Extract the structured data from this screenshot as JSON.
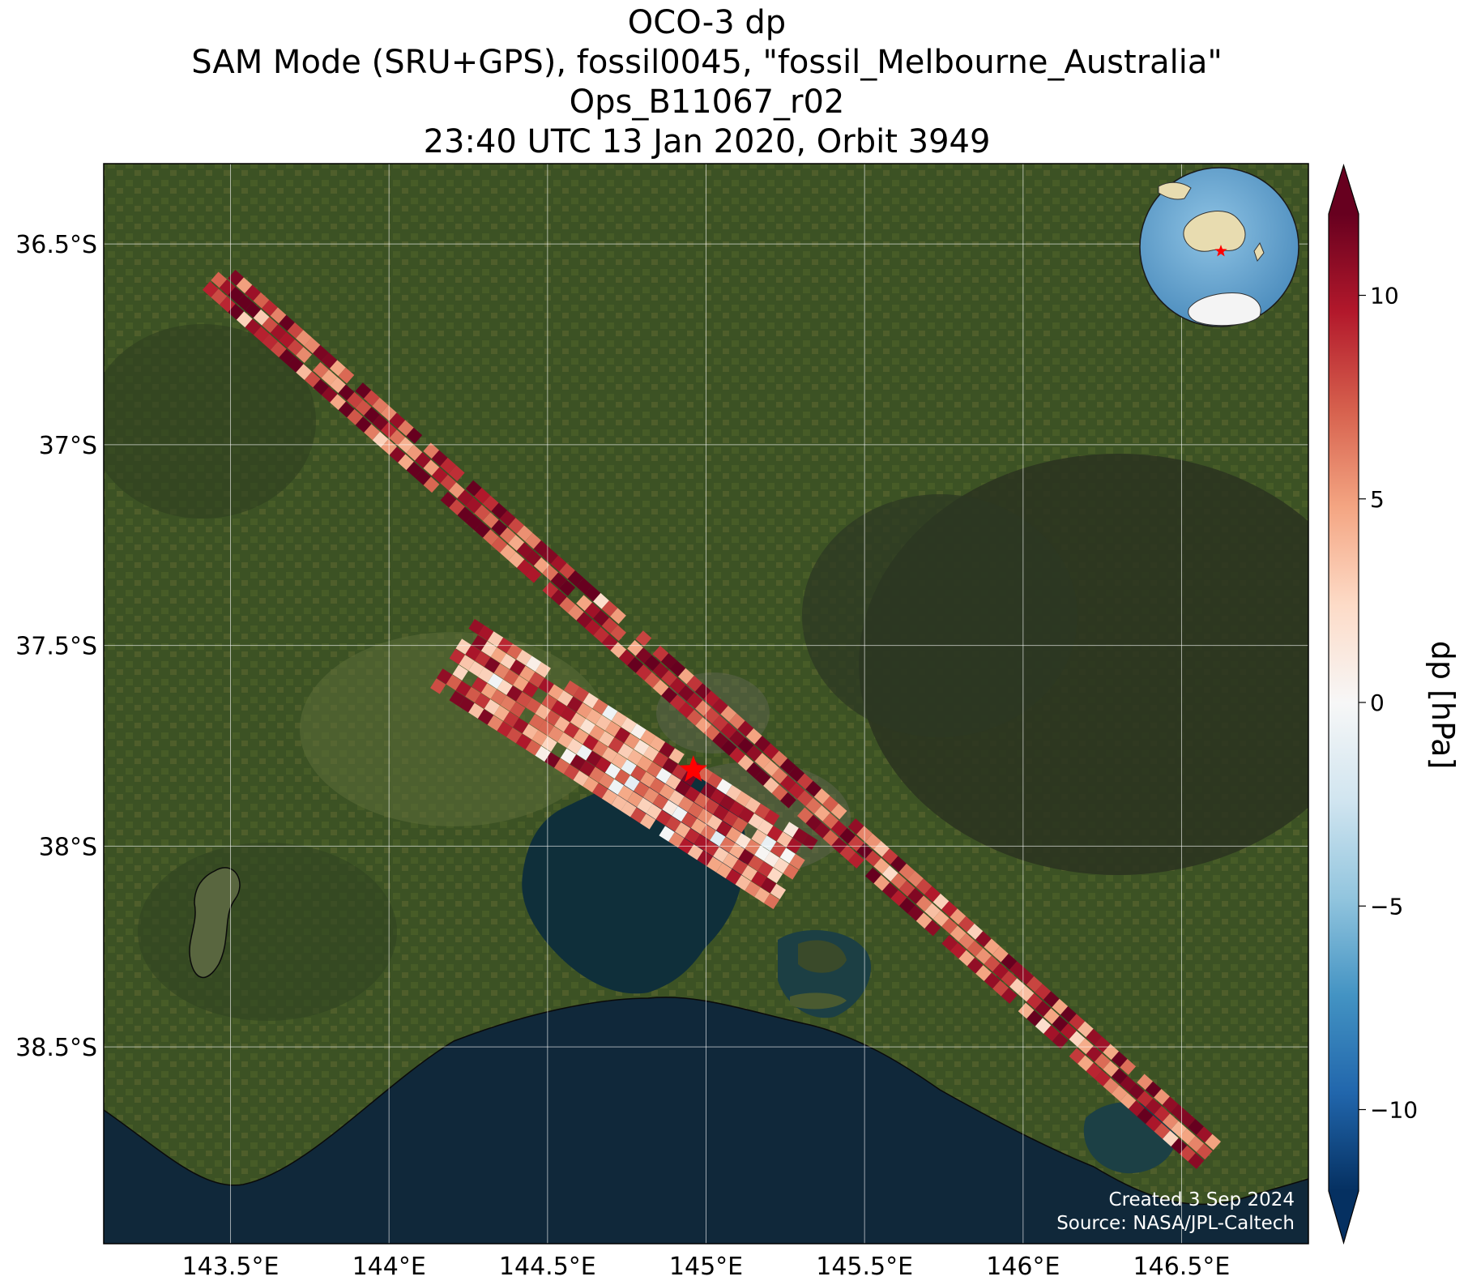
{
  "title_lines": [
    "OCO-3 dp",
    "SAM Mode (SRU+GPS), fossil0045, \"fossil_Melbourne_Australia\"",
    "Ops_B11067_r02",
    "23:40 UTC 13 Jan 2020, Orbit 3949"
  ],
  "map": {
    "lon_range": [
      143.1,
      146.9
    ],
    "lat_range": [
      -38.99,
      -36.3
    ],
    "lon_ticks": [
      143.5,
      144.0,
      144.5,
      145.0,
      145.5,
      146.0,
      146.5
    ],
    "lon_tick_labels": [
      "143.5°E",
      "144°E",
      "144.5°E",
      "145°E",
      "145.5°E",
      "146°E",
      "146.5°E"
    ],
    "lat_ticks": [
      -36.5,
      -37.0,
      -37.5,
      -38.0,
      -38.5
    ],
    "lat_tick_labels": [
      "36.5°S",
      "37°S",
      "37.5°S",
      "38°S",
      "38.5°S"
    ],
    "gridlines": true,
    "basemap": "satellite imagery",
    "target_marker": {
      "lon": 144.96,
      "lat": -37.81,
      "color": "#ff0000",
      "symbol": "star"
    }
  },
  "colorbar": {
    "label": "dp [hPa]",
    "range": [
      -12,
      12
    ],
    "ticks": [
      10,
      5,
      0,
      -5,
      -10
    ],
    "tick_labels": [
      "10",
      "5",
      "0",
      "−5",
      "−10"
    ],
    "colormap": "RdBu_r",
    "extend": "both"
  },
  "inset_globe": {
    "center_lon": 135,
    "center_lat": -25,
    "marker_lon": 144.96,
    "marker_lat": -37.81
  },
  "credits": {
    "created": "Created 3 Sep 2024",
    "source": "Source: NASA/JPL-Caltech"
  },
  "chart_data": {
    "type": "heatmap",
    "title": "OCO-3 dp",
    "xlabel": "",
    "ylabel": "",
    "colorbar_label": "dp [hPa]",
    "xlim": [
      143.1,
      146.9
    ],
    "ylim": [
      -38.99,
      -36.3
    ],
    "vmin": -12,
    "vmax": 12,
    "swaths": [
      {
        "path": [
          [
            143.45,
            -36.58
          ],
          [
            146.6,
            -38.78
          ]
        ],
        "half_width_deg": 0.06,
        "typical_dp_hPa": 9
      },
      {
        "path": [
          [
            144.2,
            -37.52
          ],
          [
            145.3,
            -38.08
          ]
        ],
        "half_width_deg": 0.13,
        "typical_dp_hPa": 7
      }
    ]
  }
}
